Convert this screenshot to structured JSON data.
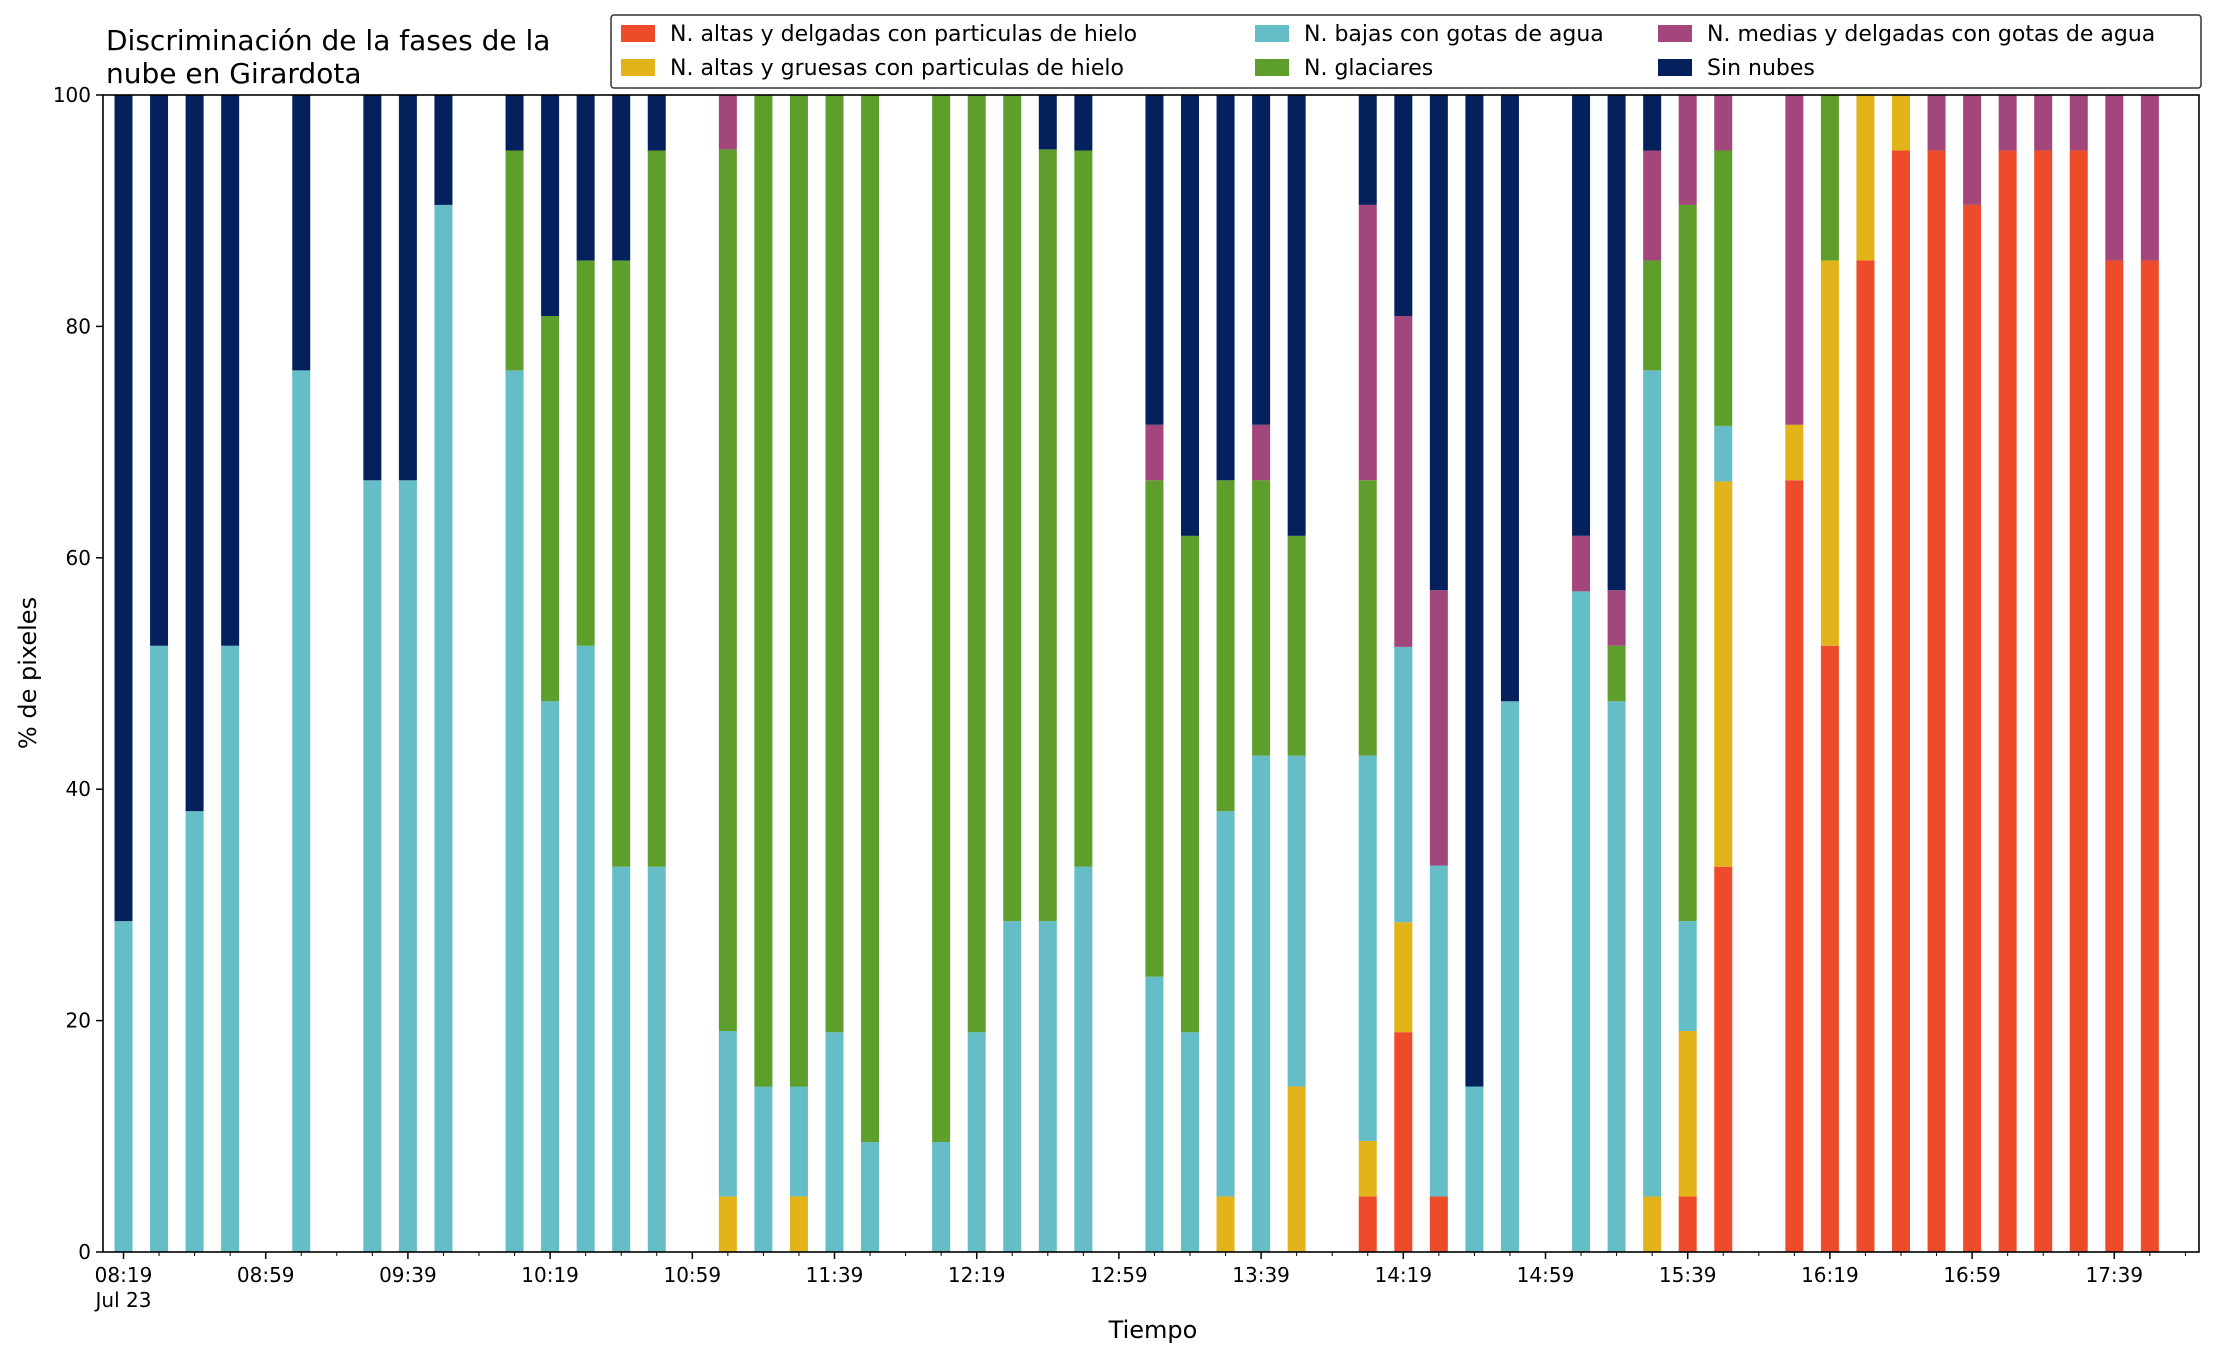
{
  "chart_data": {
    "type": "bar",
    "stacked": true,
    "title_lines": [
      "Discriminación de la fases de la",
      "nube en Girardota"
    ],
    "xlabel": "Tiempo",
    "ylabel": "% de pixeles",
    "ylim": [
      0,
      100
    ],
    "yticks": [
      "0",
      "20",
      "40",
      "60",
      "80",
      "100"
    ],
    "xticks": [
      {
        "slot": 0,
        "label": "08:19",
        "sublabel": "Jul 23"
      },
      {
        "slot": 4,
        "label": "08:59"
      },
      {
        "slot": 8,
        "label": "09:39"
      },
      {
        "slot": 12,
        "label": "10:19"
      },
      {
        "slot": 16,
        "label": "10:59"
      },
      {
        "slot": 20,
        "label": "11:39"
      },
      {
        "slot": 24,
        "label": "12:19"
      },
      {
        "slot": 28,
        "label": "12:59"
      },
      {
        "slot": 32,
        "label": "13:39"
      },
      {
        "slot": 36,
        "label": "14:19"
      },
      {
        "slot": 40,
        "label": "14:59"
      },
      {
        "slot": 44,
        "label": "15:39"
      },
      {
        "slot": 48,
        "label": "16:19"
      },
      {
        "slot": 52,
        "label": "16:59"
      },
      {
        "slot": 56,
        "label": "17:39"
      }
    ],
    "grid": false,
    "legend_position": "top-right",
    "legend": [
      {
        "key": "alt_del",
        "label": "N. altas y delgadas con particulas de hielo",
        "color": "#ee4b2b"
      },
      {
        "key": "alt_grue",
        "label": "N. altas y gruesas con particulas de hielo",
        "color": "#e3b419"
      },
      {
        "key": "bajas",
        "label": "N. bajas con gotas de agua",
        "color": "#65bdc8"
      },
      {
        "key": "glaciares",
        "label": "N. glaciares",
        "color": "#5e9e2b"
      },
      {
        "key": "medias",
        "label": "N. medias y delgadas con gotas de agua",
        "color": "#a3467b"
      },
      {
        "key": "sin",
        "label": "Sin nubes",
        "color": "#04215e"
      }
    ],
    "stack_order": [
      "alt_del",
      "alt_grue",
      "bajas",
      "glaciares",
      "medias",
      "sin"
    ],
    "bars": [
      {
        "slot": 0,
        "alt_del": 0,
        "alt_grue": 0,
        "bajas": 28.6,
        "glaciares": 0,
        "medias": 0,
        "sin": 71.4
      },
      {
        "slot": 1,
        "alt_del": 0,
        "alt_grue": 0,
        "bajas": 52.4,
        "glaciares": 0,
        "medias": 0,
        "sin": 47.6
      },
      {
        "slot": 2,
        "alt_del": 0,
        "alt_grue": 0,
        "bajas": 38.1,
        "glaciares": 0,
        "medias": 0,
        "sin": 61.9
      },
      {
        "slot": 3,
        "alt_del": 0,
        "alt_grue": 0,
        "bajas": 52.4,
        "glaciares": 0,
        "medias": 0,
        "sin": 47.6
      },
      {
        "slot": 5,
        "alt_del": 0,
        "alt_grue": 0,
        "bajas": 76.2,
        "glaciares": 0,
        "medias": 0,
        "sin": 23.8
      },
      {
        "slot": 7,
        "alt_del": 0,
        "alt_grue": 0,
        "bajas": 66.7,
        "glaciares": 0,
        "medias": 0,
        "sin": 33.3
      },
      {
        "slot": 8,
        "alt_del": 0,
        "alt_grue": 0,
        "bajas": 66.7,
        "glaciares": 0,
        "medias": 0,
        "sin": 33.3
      },
      {
        "slot": 9,
        "alt_del": 0,
        "alt_grue": 0,
        "bajas": 90.5,
        "glaciares": 0,
        "medias": 0,
        "sin": 9.5
      },
      {
        "slot": 11,
        "alt_del": 0,
        "alt_grue": 0,
        "bajas": 76.2,
        "glaciares": 19.0,
        "medias": 0,
        "sin": 4.8
      },
      {
        "slot": 12,
        "alt_del": 0,
        "alt_grue": 0,
        "bajas": 47.6,
        "glaciares": 33.3,
        "medias": 0,
        "sin": 19.1
      },
      {
        "slot": 13,
        "alt_del": 0,
        "alt_grue": 0,
        "bajas": 52.4,
        "glaciares": 33.3,
        "medias": 0,
        "sin": 14.3
      },
      {
        "slot": 14,
        "alt_del": 0,
        "alt_grue": 0,
        "bajas": 33.3,
        "glaciares": 52.4,
        "medias": 0,
        "sin": 14.3
      },
      {
        "slot": 15,
        "alt_del": 0,
        "alt_grue": 0,
        "bajas": 33.3,
        "glaciares": 61.9,
        "medias": 0,
        "sin": 4.8
      },
      {
        "slot": 17,
        "alt_del": 0,
        "alt_grue": 4.8,
        "bajas": 14.3,
        "glaciares": 76.2,
        "medias": 4.7,
        "sin": 0
      },
      {
        "slot": 18,
        "alt_del": 0,
        "alt_grue": 0,
        "bajas": 14.3,
        "glaciares": 85.7,
        "medias": 0,
        "sin": 0
      },
      {
        "slot": 19,
        "alt_del": 0,
        "alt_grue": 4.8,
        "bajas": 9.5,
        "glaciares": 85.7,
        "medias": 0,
        "sin": 0
      },
      {
        "slot": 20,
        "alt_del": 0,
        "alt_grue": 0,
        "bajas": 19.0,
        "glaciares": 81.0,
        "medias": 0,
        "sin": 0
      },
      {
        "slot": 21,
        "alt_del": 0,
        "alt_grue": 0,
        "bajas": 9.5,
        "glaciares": 90.5,
        "medias": 0,
        "sin": 0
      },
      {
        "slot": 23,
        "alt_del": 0,
        "alt_grue": 0,
        "bajas": 9.5,
        "glaciares": 90.5,
        "medias": 0,
        "sin": 0
      },
      {
        "slot": 24,
        "alt_del": 0,
        "alt_grue": 0,
        "bajas": 19.0,
        "glaciares": 81.0,
        "medias": 0,
        "sin": 0
      },
      {
        "slot": 25,
        "alt_del": 0,
        "alt_grue": 0,
        "bajas": 28.6,
        "glaciares": 71.4,
        "medias": 0,
        "sin": 0
      },
      {
        "slot": 26,
        "alt_del": 0,
        "alt_grue": 0,
        "bajas": 28.6,
        "glaciares": 66.7,
        "medias": 0,
        "sin": 4.7
      },
      {
        "slot": 27,
        "alt_del": 0,
        "alt_grue": 0,
        "bajas": 33.3,
        "glaciares": 61.9,
        "medias": 0,
        "sin": 4.8
      },
      {
        "slot": 29,
        "alt_del": 0,
        "alt_grue": 0,
        "bajas": 23.8,
        "glaciares": 42.9,
        "medias": 4.8,
        "sin": 28.5
      },
      {
        "slot": 30,
        "alt_del": 0,
        "alt_grue": 0,
        "bajas": 19.0,
        "glaciares": 42.9,
        "medias": 0,
        "sin": 38.1
      },
      {
        "slot": 31,
        "alt_del": 0,
        "alt_grue": 4.8,
        "bajas": 33.3,
        "glaciares": 28.6,
        "medias": 0,
        "sin": 33.3
      },
      {
        "slot": 32,
        "alt_del": 0,
        "alt_grue": 0,
        "bajas": 42.9,
        "glaciares": 23.8,
        "medias": 4.8,
        "sin": 28.5
      },
      {
        "slot": 33,
        "alt_del": 0,
        "alt_grue": 14.3,
        "bajas": 28.6,
        "glaciares": 19.0,
        "medias": 0,
        "sin": 38.1
      },
      {
        "slot": 35,
        "alt_del": 4.8,
        "alt_grue": 4.8,
        "bajas": 33.3,
        "glaciares": 23.8,
        "medias": 23.8,
        "sin": 9.5
      },
      {
        "slot": 36,
        "alt_del": 19.0,
        "alt_grue": 9.5,
        "bajas": 23.8,
        "glaciares": 0,
        "medias": 28.6,
        "sin": 19.1
      },
      {
        "slot": 37,
        "alt_del": 4.8,
        "alt_grue": 0,
        "bajas": 28.6,
        "glaciares": 0,
        "medias": 23.8,
        "sin": 42.8
      },
      {
        "slot": 38,
        "alt_del": 0,
        "alt_grue": 0,
        "bajas": 14.3,
        "glaciares": 0,
        "medias": 0,
        "sin": 85.7
      },
      {
        "slot": 39,
        "alt_del": 0,
        "alt_grue": 0,
        "bajas": 47.6,
        "glaciares": 0,
        "medias": 0,
        "sin": 52.4
      },
      {
        "slot": 41,
        "alt_del": 0,
        "alt_grue": 0,
        "bajas": 57.1,
        "glaciares": 0,
        "medias": 4.8,
        "sin": 38.1
      },
      {
        "slot": 42,
        "alt_del": 0,
        "alt_grue": 0,
        "bajas": 47.6,
        "glaciares": 4.8,
        "medias": 4.8,
        "sin": 42.8
      },
      {
        "slot": 43,
        "alt_del": 0,
        "alt_grue": 4.8,
        "bajas": 71.4,
        "glaciares": 9.5,
        "medias": 9.5,
        "sin": 4.8
      },
      {
        "slot": 44,
        "alt_del": 4.8,
        "alt_grue": 14.3,
        "bajas": 9.5,
        "glaciares": 61.9,
        "medias": 9.5,
        "sin": 0
      },
      {
        "slot": 45,
        "alt_del": 33.3,
        "alt_grue": 33.3,
        "bajas": 4.8,
        "glaciares": 23.8,
        "medias": 4.8,
        "sin": 0
      },
      {
        "slot": 47,
        "alt_del": 66.7,
        "alt_grue": 4.8,
        "bajas": 0,
        "glaciares": 0,
        "medias": 28.5,
        "sin": 0
      },
      {
        "slot": 48,
        "alt_del": 52.4,
        "alt_grue": 33.3,
        "bajas": 0,
        "glaciares": 14.3,
        "medias": 0,
        "sin": 0
      },
      {
        "slot": 49,
        "alt_del": 85.7,
        "alt_grue": 14.3,
        "bajas": 0,
        "glaciares": 0,
        "medias": 0,
        "sin": 0
      },
      {
        "slot": 50,
        "alt_del": 95.2,
        "alt_grue": 4.8,
        "bajas": 0,
        "glaciares": 0,
        "medias": 0,
        "sin": 0
      },
      {
        "slot": 51,
        "alt_del": 95.2,
        "alt_grue": 0,
        "bajas": 0,
        "glaciares": 0,
        "medias": 4.8,
        "sin": 0
      },
      {
        "slot": 52,
        "alt_del": 90.5,
        "alt_grue": 0,
        "bajas": 0,
        "glaciares": 0,
        "medias": 9.5,
        "sin": 0
      },
      {
        "slot": 53,
        "alt_del": 95.2,
        "alt_grue": 0,
        "bajas": 0,
        "glaciares": 0,
        "medias": 4.8,
        "sin": 0
      },
      {
        "slot": 54,
        "alt_del": 95.2,
        "alt_grue": 0,
        "bajas": 0,
        "glaciares": 0,
        "medias": 4.8,
        "sin": 0
      },
      {
        "slot": 55,
        "alt_del": 95.2,
        "alt_grue": 0,
        "bajas": 0,
        "glaciares": 0,
        "medias": 4.8,
        "sin": 0
      },
      {
        "slot": 56,
        "alt_del": 85.7,
        "alt_grue": 0,
        "bajas": 0,
        "glaciares": 0,
        "medias": 14.3,
        "sin": 0
      },
      {
        "slot": 57,
        "alt_del": 85.7,
        "alt_grue": 0,
        "bajas": 0,
        "glaciares": 0,
        "medias": 14.3,
        "sin": 0
      }
    ]
  }
}
